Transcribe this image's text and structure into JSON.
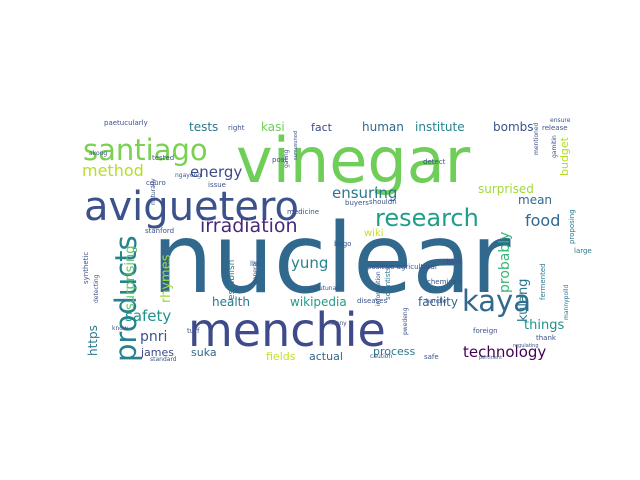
{
  "wordcloud": {
    "words": [
      {
        "text": "nuclear",
        "color": "#31688e"
      },
      {
        "text": "vinegar",
        "color": "#6ece58"
      },
      {
        "text": "menchie",
        "color": "#3e4a89"
      },
      {
        "text": "aviguetero",
        "color": "#3b528b"
      },
      {
        "text": "santiago",
        "color": "#7ad151"
      },
      {
        "text": "products",
        "color": "#26828e"
      },
      {
        "text": "research",
        "color": "#1f9e89"
      },
      {
        "text": "kaya",
        "color": "#31688e"
      },
      {
        "text": "irradiation",
        "color": "#482878"
      },
      {
        "text": "method",
        "color": "#b5de2b"
      },
      {
        "text": "energy",
        "color": "#3e4a89"
      },
      {
        "text": "ensuring",
        "color": "#2a788e"
      },
      {
        "text": "food",
        "color": "#31688e"
      },
      {
        "text": "technology",
        "color": "#440154"
      },
      {
        "text": "safety",
        "color": "#21918c"
      },
      {
        "text": "yung",
        "color": "#26828e"
      },
      {
        "text": "probably",
        "color": "#35b779"
      },
      {
        "text": "kulang",
        "color": "#2a788e"
      },
      {
        "text": "surprising",
        "color": "#5ec962"
      },
      {
        "text": "rhymes",
        "color": "#a0da39"
      },
      {
        "text": "things",
        "color": "#21918c"
      },
      {
        "text": "pnri",
        "color": "#3b528b"
      },
      {
        "text": "tests",
        "color": "#2a788e"
      },
      {
        "text": "kasi",
        "color": "#6ece58"
      },
      {
        "text": "fact",
        "color": "#3e4a89"
      },
      {
        "text": "human",
        "color": "#31688e"
      },
      {
        "text": "institute",
        "color": "#26828e"
      },
      {
        "text": "bombs",
        "color": "#3b528b"
      },
      {
        "text": "budget",
        "color": "#b5de2b"
      },
      {
        "text": "surprised",
        "color": "#9fda3a"
      },
      {
        "text": "mean",
        "color": "#31688e"
      },
      {
        "text": "health",
        "color": "#2a788e"
      },
      {
        "text": "wikipedia",
        "color": "#1f9e89"
      },
      {
        "text": "facility",
        "color": "#31688e"
      },
      {
        "text": "james",
        "color": "#3e4a89"
      },
      {
        "text": "suka",
        "color": "#31688e"
      },
      {
        "text": "fields",
        "color": "#c8e020"
      },
      {
        "text": "actual",
        "color": "#31688e"
      },
      {
        "text": "process",
        "color": "#2a788e"
      },
      {
        "text": "https",
        "color": "#2a788e"
      },
      {
        "text": "wiki",
        "color": "#c8e020"
      },
      {
        "text": "establish",
        "color": "#2a788e"
      },
      {
        "text": "scientists",
        "color": "#2a788e"
      },
      {
        "text": "fermented",
        "color": "#2a788e"
      },
      {
        "text": "proposing",
        "color": "#2a788e"
      },
      {
        "text": "large",
        "color": "#2a788e"
      },
      {
        "text": "mannypolld",
        "color": "#2a788e"
      },
      {
        "text": "paetucularly",
        "color": "#3b528b"
      },
      {
        "text": "right",
        "color": "#3b528b"
      },
      {
        "text": "tested",
        "color": "#3b528b"
      },
      {
        "text": "cguro",
        "color": "#3b528b"
      },
      {
        "text": "ngayong",
        "color": "#3b528b"
      },
      {
        "text": "issue",
        "color": "#3b528b"
      },
      {
        "text": "post",
        "color": "#3b528b"
      },
      {
        "text": "medicine",
        "color": "#3b528b"
      },
      {
        "text": "stanford",
        "color": "#3b528b"
      },
      {
        "text": "synthetic",
        "color": "#3b528b"
      },
      {
        "text": "detecting",
        "color": "#3b528b"
      },
      {
        "text": "know",
        "color": "#3b528b"
      },
      {
        "text": "turf",
        "color": "#3b528b"
      },
      {
        "text": "list",
        "color": "#3b528b"
      },
      {
        "text": "bago",
        "color": "#3b528b"
      },
      {
        "text": "general",
        "color": "#3b528b"
      },
      {
        "text": "natutunan",
        "color": "#3b528b"
      },
      {
        "text": "buyers",
        "color": "#3b528b"
      },
      {
        "text": "shouldn",
        "color": "#3b528b"
      },
      {
        "text": "detect",
        "color": "#3b528b"
      },
      {
        "text": "mentioned",
        "color": "#3b528b"
      },
      {
        "text": "gamitin",
        "color": "#3b528b"
      },
      {
        "text": "release",
        "color": "#3b528b"
      },
      {
        "text": "ensure",
        "color": "#3b528b"
      },
      {
        "text": "positive agricultural",
        "color": "#3b528b"
      },
      {
        "text": "chemicals",
        "color": "#3b528b"
      },
      {
        "text": "think",
        "color": "#3b528b"
      },
      {
        "text": "handle",
        "color": "#3b528b"
      },
      {
        "text": "information",
        "color": "#3b528b"
      },
      {
        "text": "diseases",
        "color": "#3b528b"
      },
      {
        "text": "manny",
        "color": "#3b528b"
      },
      {
        "text": "caution",
        "color": "#3b528b"
      },
      {
        "text": "safe",
        "color": "#3b528b"
      },
      {
        "text": "pwedeng",
        "color": "#3b528b"
      },
      {
        "text": "foreign",
        "color": "#3b528b"
      },
      {
        "text": "thank",
        "color": "#3b528b"
      },
      {
        "text": "pertinent",
        "color": "#3b528b"
      },
      {
        "text": "regulating",
        "color": "#3b528b"
      },
      {
        "text": "standard",
        "color": "#3b528b"
      },
      {
        "text": "naturally",
        "color": "#3b528b"
      },
      {
        "text": "akong",
        "color": "#3b528b"
      },
      {
        "text": "galing",
        "color": "#3b528b"
      },
      {
        "text": "sumusunod",
        "color": "#3b528b"
      }
    ]
  }
}
